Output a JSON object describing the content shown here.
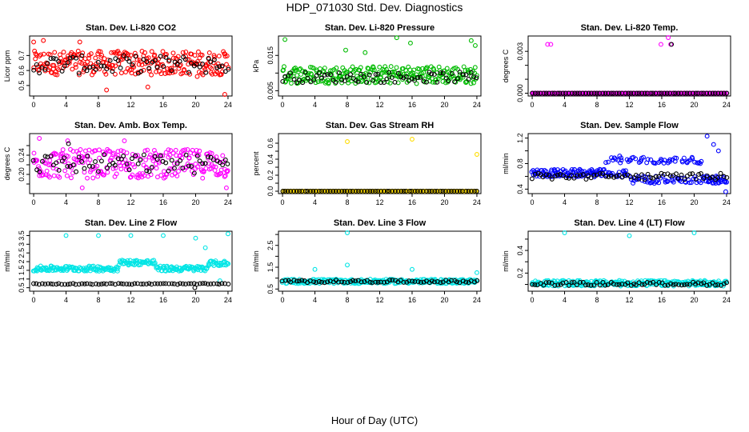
{
  "page": {
    "title": "HDP_071030  Std. Dev. Diagnostics",
    "xlabel": "Hour of Day (UTC)"
  },
  "chart_data": [
    {
      "type": "scatter",
      "title": "Stan. Dev. Li-820 CO2",
      "ylabel": "Licor ppm",
      "xlim": [
        -0.5,
        24.5
      ],
      "ylim": [
        0.43,
        0.83
      ],
      "xticks": [
        0,
        4,
        8,
        12,
        16,
        20,
        24
      ],
      "yticks": [
        0.5,
        0.6,
        0.7
      ],
      "series": [
        {
          "color": "#ff0000",
          "style": "band",
          "points_x": [
            0.1,
            0.5,
            0.9,
            1.4,
            1.9,
            2.4,
            2.9,
            3.4,
            3.9,
            4.4,
            4.9,
            5.4,
            5.9,
            6.4,
            6.9,
            7.4,
            7.9,
            8.4,
            8.9,
            9.4,
            9.9,
            10.4,
            10.9,
            11.4,
            11.9,
            12.4,
            12.9,
            13.4,
            13.9,
            14.4,
            14.9,
            15.4,
            15.9,
            16.4,
            16.9,
            17.4,
            17.9,
            18.4,
            18.9,
            19.4,
            19.9,
            20.4,
            20.9,
            21.4,
            21.9,
            22.4,
            22.9,
            23.4,
            23.9
          ],
          "center": 0.65,
          "spread": 0.08,
          "outliers": [
            [
              0.0,
              0.79
            ],
            [
              1.2,
              0.8
            ],
            [
              5.7,
              0.79
            ],
            [
              9.0,
              0.47
            ],
            [
              23.6,
              0.44
            ],
            [
              14.1,
              0.49
            ],
            [
              20.2,
              0.56
            ]
          ]
        },
        {
          "color": "#000000",
          "style": "band",
          "center": 0.64,
          "spread": 0.06
        }
      ]
    },
    {
      "type": "scatter",
      "title": "Stan. Dev. Li-820 Pressure",
      "ylabel": "kPa",
      "xlim": [
        -0.5,
        24.5
      ],
      "ylim": [
        0.0035,
        0.0205
      ],
      "xticks": [
        0,
        4,
        8,
        12,
        16,
        20,
        24
      ],
      "yticks": [
        0.005,
        0.01,
        0.015
      ],
      "yticklabels": [
        "0.005",
        "",
        "0.015"
      ],
      "series": [
        {
          "color": "#00bb00",
          "style": "band",
          "center": 0.0095,
          "spread": 0.0025,
          "outliers": [
            [
              0.3,
              0.0195
            ],
            [
              14.1,
              0.02
            ],
            [
              15.8,
              0.0185
            ],
            [
              23.3,
              0.0192
            ],
            [
              23.8,
              0.0178
            ],
            [
              7.8,
              0.0165
            ],
            [
              10.2,
              0.0158
            ]
          ]
        },
        {
          "color": "#000000",
          "style": "band",
          "center": 0.0088,
          "spread": 0.0015
        }
      ]
    },
    {
      "type": "scatter",
      "title": "Stan. Dev. Li-820 Temp.",
      "ylabel": "degrees C",
      "xlim": [
        -0.5,
        24.5
      ],
      "ylim": [
        -0.0002,
        0.0041
      ],
      "xticks": [
        0,
        4,
        8,
        12,
        16,
        20,
        24
      ],
      "yticks": [
        0.0,
        0.001,
        0.002,
        0.003
      ],
      "yticklabels": [
        "0.000",
        "",
        "",
        "0.003"
      ],
      "series": [
        {
          "color": "#ff00ff",
          "style": "flat",
          "center": 0.0,
          "spread": 0.0,
          "outliers": [
            [
              1.9,
              0.0035
            ],
            [
              2.3,
              0.0035
            ],
            [
              15.9,
              0.0035
            ],
            [
              16.8,
              0.004
            ],
            [
              17.1,
              0.0035
            ]
          ]
        },
        {
          "color": "#000000",
          "style": "flat",
          "center": 0.0,
          "spread": 0.0,
          "outliers": [
            [
              17.2,
              0.0035
            ]
          ]
        }
      ]
    },
    {
      "type": "scatter",
      "title": "Stan. Dev. Amb. Box Temp.",
      "ylabel": "degrees C",
      "xlim": [
        -0.5,
        24.5
      ],
      "ylim": [
        0.16,
        0.285
      ],
      "xticks": [
        0,
        4,
        8,
        12,
        16,
        20,
        24
      ],
      "yticks": [
        0.18,
        0.2,
        0.22,
        0.24,
        0.26
      ],
      "yticklabels": [
        "",
        "0.20",
        "",
        "0.24",
        ""
      ],
      "series": [
        {
          "color": "#ff00ff",
          "style": "band",
          "center": 0.222,
          "spread": 0.03,
          "outliers": [
            [
              0.7,
              0.275
            ],
            [
              4.2,
              0.27
            ],
            [
              6.0,
              0.172
            ],
            [
              11.2,
              0.27
            ],
            [
              23.8,
              0.172
            ]
          ]
        },
        {
          "color": "#000000",
          "style": "band",
          "center": 0.222,
          "spread": 0.02,
          "outliers": [
            [
              4.3,
              0.264
            ]
          ]
        }
      ]
    },
    {
      "type": "scatter",
      "title": "Stan. Dev. Gas Stream RH",
      "ylabel": "percent",
      "xlim": [
        -0.5,
        24.5
      ],
      "ylim": [
        -0.03,
        0.72
      ],
      "xticks": [
        0,
        4,
        8,
        12,
        16,
        20,
        24
      ],
      "yticks": [
        0.0,
        0.1,
        0.2,
        0.3,
        0.4,
        0.5,
        0.6
      ],
      "yticklabels": [
        "0.0",
        "",
        "0.2",
        "",
        "0.4",
        "",
        "0.6"
      ],
      "series": [
        {
          "color": "#ffdd00",
          "style": "flat",
          "center": 0.0,
          "spread": 0.0,
          "outliers": [
            [
              8.0,
              0.62
            ],
            [
              16.0,
              0.65
            ],
            [
              24.0,
              0.46
            ]
          ]
        },
        {
          "color": "#000000",
          "style": "flat",
          "center": 0.0,
          "spread": 0.0
        }
      ]
    },
    {
      "type": "scatter",
      "title": "Stan. Dev. Sample Flow",
      "ylabel": "ml/min",
      "xlim": [
        -0.5,
        24.5
      ],
      "ylim": [
        0.33,
        1.27
      ],
      "xticks": [
        0,
        4,
        8,
        12,
        16,
        20,
        24
      ],
      "yticks": [
        0.4,
        0.6,
        0.8,
        1.0,
        1.2
      ],
      "yticklabels": [
        "0.4",
        "",
        "0.8",
        "",
        "1.2"
      ],
      "series": [
        {
          "color": "#0000ff",
          "style": "flow",
          "center": 0.65,
          "spread": 0.06,
          "outliers": [
            [
              21.6,
              1.23
            ],
            [
              22.4,
              1.1
            ],
            [
              23.0,
              1.0
            ],
            [
              10.8,
              0.92
            ],
            [
              23.9,
              0.36
            ]
          ]
        },
        {
          "color": "#000000",
          "style": "band",
          "center": 0.6,
          "spread": 0.05
        }
      ]
    },
    {
      "type": "scatter",
      "title": "Stan. Dev. Line 2 Flow",
      "ylabel": "ml/min",
      "xlim": [
        -0.5,
        24.5
      ],
      "ylim": [
        0.3,
        3.75
      ],
      "xticks": [
        0,
        4,
        8,
        12,
        16,
        20,
        24
      ],
      "yticks": [
        0.5,
        1.0,
        1.5,
        2.0,
        2.5,
        3.0,
        3.5
      ],
      "series": [
        {
          "color": "#00e5e5",
          "style": "rise",
          "center": 1.6,
          "spread": 0.15,
          "outliers": [
            [
              4.0,
              3.5
            ],
            [
              8.0,
              3.5
            ],
            [
              12.0,
              3.5
            ],
            [
              16.0,
              3.5
            ],
            [
              20.0,
              3.35
            ],
            [
              24.0,
              3.6
            ],
            [
              21.2,
              2.8
            ],
            [
              23.0,
              0.9
            ]
          ]
        },
        {
          "color": "#000000",
          "style": "flat",
          "center": 0.72,
          "spread": 0.03,
          "outliers": [
            [
              19.9,
              0.5
            ]
          ]
        }
      ]
    },
    {
      "type": "scatter",
      "title": "Stan. Dev. Line 3 Flow",
      "ylabel": "ml/min",
      "xlim": [
        -0.5,
        24.5
      ],
      "ylim": [
        0.4,
        3.15
      ],
      "xticks": [
        0,
        4,
        8,
        12,
        16,
        20,
        24
      ],
      "yticks": [
        0.5,
        1.0,
        1.5,
        2.0,
        2.5,
        3.0
      ],
      "yticklabels": [
        "0.5",
        "",
        "1.5",
        "",
        "2.5",
        ""
      ],
      "series": [
        {
          "color": "#00e5e5",
          "style": "band",
          "center": 0.85,
          "spread": 0.1,
          "outliers": [
            [
              4.0,
              1.4
            ],
            [
              8.0,
              3.1
            ],
            [
              8.0,
              1.6
            ],
            [
              16.0,
              1.4
            ],
            [
              24.0,
              1.25
            ]
          ]
        },
        {
          "color": "#000000",
          "style": "flat",
          "center": 0.85,
          "spread": 0.06
        }
      ]
    },
    {
      "type": "scatter",
      "title": "Stan. Dev. Line 4 (LT) Flow",
      "ylabel": "ml/min",
      "xlim": [
        -0.5,
        24.5
      ],
      "ylim": [
        0.04,
        0.57
      ],
      "xticks": [
        0,
        4,
        8,
        12,
        16,
        20,
        24
      ],
      "yticks": [
        0.1,
        0.2,
        0.3,
        0.4,
        0.5
      ],
      "yticklabels": [
        "",
        "0.2",
        "",
        "0.4",
        ""
      ],
      "series": [
        {
          "color": "#00e5e5",
          "style": "band",
          "center": 0.11,
          "spread": 0.025,
          "outliers": [
            [
              4.0,
              0.56
            ],
            [
              12.0,
              0.53
            ],
            [
              20.0,
              0.56
            ]
          ]
        },
        {
          "color": "#000000",
          "style": "flat",
          "center": 0.105,
          "spread": 0.015
        }
      ]
    }
  ]
}
